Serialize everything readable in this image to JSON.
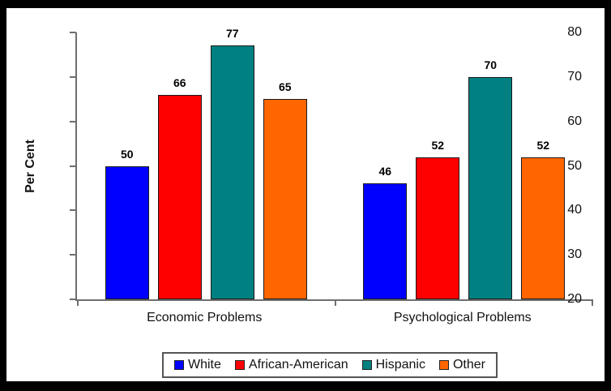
{
  "chart_data": {
    "type": "bar",
    "title": "",
    "ylabel": "Per Cent",
    "xlabel": "",
    "categories": [
      "Economic Problems",
      "Psychological Problems"
    ],
    "series": [
      {
        "name": "White",
        "color": "#0000ff",
        "values": [
          50,
          46
        ]
      },
      {
        "name": "African-American",
        "color": "#ff0000",
        "values": [
          66,
          52
        ]
      },
      {
        "name": "Hispanic",
        "color": "#008080",
        "values": [
          77,
          70
        ]
      },
      {
        "name": "Other",
        "color": "#ff6600",
        "values": [
          65,
          52
        ]
      }
    ],
    "ylim": [
      20,
      80
    ],
    "ytick_step": 10,
    "grid": false,
    "legend_position": "bottom",
    "frame_color": "#000000",
    "axis_color": "#6e6e6e"
  }
}
